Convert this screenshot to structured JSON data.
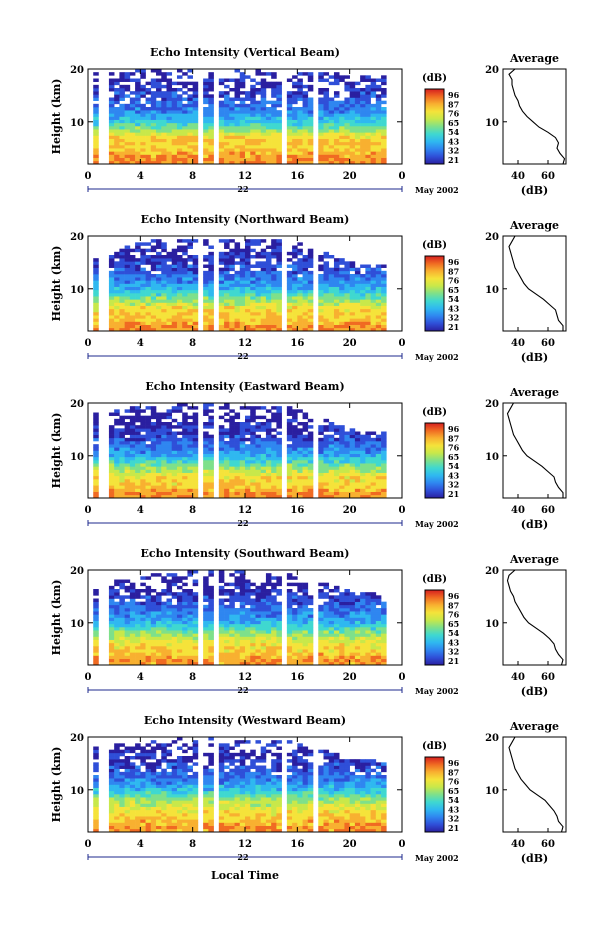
{
  "figure": {
    "xlabel": "Local Time",
    "colors": {
      "ink": "#000000",
      "gap": "#ffffff",
      "colormap": [
        "#2a1fa0",
        "#2f4fd8",
        "#2f86f0",
        "#2fb8f0",
        "#3fd8d0",
        "#7ee08a",
        "#c8e84a",
        "#f5e33a",
        "#f8b030",
        "#f06a22",
        "#d61f1f"
      ]
    }
  },
  "chart_data": [
    {
      "type": "heatmap",
      "title": "Echo Intensity (Vertical Beam)",
      "ylabel": "Height (km)",
      "x_ticks": [
        "0",
        "4",
        "8",
        "12",
        "16",
        "20",
        "0"
      ],
      "y_ticks": [
        "20",
        "10"
      ],
      "xlim": [
        0,
        24
      ],
      "ylim": [
        2,
        20
      ],
      "day_label": "22",
      "date_label": "May 2002",
      "colorbar": {
        "label": "(dB)",
        "ticks": [
          "96",
          "87",
          "76",
          "65",
          "54",
          "43",
          "32",
          "21"
        ],
        "range": [
          21,
          96
        ]
      },
      "data_gaps_hours": [
        [
          0.0,
          0.5
        ],
        [
          1.0,
          1.6
        ],
        [
          8.4,
          8.7
        ],
        [
          9.6,
          9.9
        ],
        [
          15.0,
          15.2
        ],
        [
          17.2,
          17.5
        ],
        [
          22.7,
          24.0
        ]
      ],
      "top_height_by_hour": {
        "hour": [
          0,
          4,
          8,
          12,
          16,
          20,
          24
        ],
        "km": [
          19.5,
          19.8,
          19.8,
          19.8,
          19.5,
          19.0,
          19.0
        ]
      },
      "average_profile": {
        "title": "Average",
        "xlabel": "(dB)",
        "x_ticks": [
          "40",
          "60"
        ],
        "y_ticks": [
          "20",
          "10"
        ],
        "xlim": [
          30,
          72
        ],
        "ylim": [
          2,
          20
        ],
        "height_km": [
          2,
          3,
          4,
          5,
          6,
          7,
          8,
          9,
          10,
          11,
          12,
          13,
          14,
          15,
          16,
          17,
          18,
          19,
          20
        ],
        "value_db": [
          70,
          71,
          68,
          66,
          67,
          65,
          60,
          54,
          50,
          46,
          43,
          41,
          40,
          38,
          37,
          36,
          36,
          34,
          38
        ]
      }
    },
    {
      "type": "heatmap",
      "title": "Echo Intensity (Northward Beam)",
      "ylabel": "Height (km)",
      "x_ticks": [
        "0",
        "4",
        "8",
        "12",
        "16",
        "20",
        "0"
      ],
      "y_ticks": [
        "20",
        "10"
      ],
      "xlim": [
        0,
        24
      ],
      "ylim": [
        2,
        20
      ],
      "day_label": "22",
      "date_label": "May 2002",
      "colorbar": {
        "label": "(dB)",
        "ticks": [
          "96",
          "87",
          "76",
          "65",
          "54",
          "43",
          "32",
          "21"
        ],
        "range": [
          21,
          96
        ]
      },
      "data_gaps_hours": [
        [
          0.0,
          0.5
        ],
        [
          1.0,
          1.6
        ],
        [
          8.4,
          8.7
        ],
        [
          9.6,
          9.9
        ],
        [
          15.0,
          15.2
        ],
        [
          17.2,
          17.5
        ],
        [
          22.7,
          24.0
        ]
      ],
      "top_height_by_hour": {
        "hour": [
          0,
          4,
          8,
          12,
          16,
          20,
          24
        ],
        "km": [
          15,
          19,
          19.5,
          19.5,
          19,
          15,
          14
        ]
      },
      "average_profile": {
        "title": "Average",
        "xlabel": "(dB)",
        "x_ticks": [
          "40",
          "60"
        ],
        "y_ticks": [
          "20",
          "10"
        ],
        "xlim": [
          30,
          72
        ],
        "ylim": [
          2,
          20
        ],
        "height_km": [
          2,
          3,
          4,
          5,
          6,
          7,
          8,
          9,
          10,
          11,
          12,
          13,
          14,
          15,
          16,
          17,
          18,
          19,
          20
        ],
        "value_db": [
          70,
          70,
          67,
          66,
          65,
          61,
          57,
          52,
          47,
          44,
          42,
          40,
          38,
          37,
          36,
          35,
          34,
          36,
          38
        ]
      }
    },
    {
      "type": "heatmap",
      "title": "Echo Intensity (Eastward Beam)",
      "ylabel": "Height (km)",
      "x_ticks": [
        "0",
        "4",
        "8",
        "12",
        "16",
        "20",
        "0"
      ],
      "y_ticks": [
        "20",
        "10"
      ],
      "xlim": [
        0,
        24
      ],
      "ylim": [
        2,
        20
      ],
      "day_label": "22",
      "date_label": "May 2002",
      "colorbar": {
        "label": "(dB)",
        "ticks": [
          "96",
          "87",
          "76",
          "65",
          "54",
          "43",
          "32",
          "21"
        ],
        "range": [
          21,
          96
        ]
      },
      "data_gaps_hours": [
        [
          0.0,
          0.5
        ],
        [
          1.0,
          1.6
        ],
        [
          8.4,
          8.7
        ],
        [
          9.6,
          9.9
        ],
        [
          15.0,
          15.2
        ],
        [
          17.2,
          17.5
        ],
        [
          22.7,
          24.0
        ]
      ],
      "top_height_by_hour": {
        "hour": [
          0,
          4,
          8,
          12,
          16,
          20,
          24
        ],
        "km": [
          18,
          19.5,
          19.8,
          19.8,
          19,
          15,
          14
        ]
      },
      "average_profile": {
        "title": "Average",
        "xlabel": "(dB)",
        "x_ticks": [
          "40",
          "60"
        ],
        "y_ticks": [
          "20",
          "10"
        ],
        "xlim": [
          30,
          72
        ],
        "ylim": [
          2,
          20
        ],
        "height_km": [
          2,
          3,
          4,
          5,
          6,
          7,
          8,
          9,
          10,
          11,
          12,
          13,
          14,
          15,
          16,
          17,
          18,
          19,
          20
        ],
        "value_db": [
          70,
          70,
          67,
          65,
          64,
          60,
          56,
          51,
          46,
          43,
          41,
          39,
          37,
          36,
          35,
          34,
          33,
          35,
          37
        ]
      }
    },
    {
      "type": "heatmap",
      "title": "Echo Intensity (Southward Beam)",
      "ylabel": "Height (km)",
      "x_ticks": [
        "0",
        "4",
        "8",
        "12",
        "16",
        "20",
        "0"
      ],
      "y_ticks": [
        "20",
        "10"
      ],
      "xlim": [
        0,
        24
      ],
      "ylim": [
        2,
        20
      ],
      "day_label": "22",
      "date_label": "May 2002",
      "colorbar": {
        "label": "(dB)",
        "ticks": [
          "96",
          "87",
          "76",
          "65",
          "54",
          "43",
          "32",
          "21"
        ],
        "range": [
          21,
          96
        ]
      },
      "data_gaps_hours": [
        [
          0.0,
          0.5
        ],
        [
          1.0,
          1.6
        ],
        [
          8.4,
          8.7
        ],
        [
          9.6,
          9.9
        ],
        [
          15.0,
          15.2
        ],
        [
          17.2,
          17.5
        ],
        [
          22.7,
          24.0
        ]
      ],
      "top_height_by_hour": {
        "hour": [
          0,
          4,
          8,
          12,
          16,
          20,
          24
        ],
        "km": [
          16,
          19.5,
          19.8,
          19.8,
          19,
          16,
          15
        ]
      },
      "average_profile": {
        "title": "Average",
        "xlabel": "(dB)",
        "x_ticks": [
          "40",
          "60"
        ],
        "y_ticks": [
          "20",
          "10"
        ],
        "xlim": [
          30,
          72
        ],
        "ylim": [
          2,
          20
        ],
        "height_km": [
          2,
          3,
          4,
          5,
          6,
          7,
          8,
          9,
          10,
          11,
          12,
          13,
          14,
          15,
          16,
          17,
          18,
          19,
          20
        ],
        "value_db": [
          69,
          70,
          67,
          65,
          64,
          61,
          57,
          52,
          47,
          44,
          42,
          40,
          38,
          37,
          35,
          34,
          33,
          34,
          38
        ]
      }
    },
    {
      "type": "heatmap",
      "title": "Echo Intensity (Westward Beam)",
      "ylabel": "Height (km)",
      "x_ticks": [
        "0",
        "4",
        "8",
        "12",
        "16",
        "20",
        "0"
      ],
      "y_ticks": [
        "20",
        "10"
      ],
      "xlim": [
        0,
        24
      ],
      "ylim": [
        2,
        20
      ],
      "day_label": "22",
      "date_label": "May 2002",
      "colorbar": {
        "label": "(dB)",
        "ticks": [
          "96",
          "87",
          "76",
          "65",
          "54",
          "43",
          "32",
          "21"
        ],
        "range": [
          21,
          96
        ]
      },
      "data_gaps_hours": [
        [
          0.0,
          0.5
        ],
        [
          1.0,
          1.6
        ],
        [
          8.4,
          8.7
        ],
        [
          9.6,
          9.9
        ],
        [
          15.0,
          15.2
        ],
        [
          17.2,
          17.5
        ],
        [
          22.7,
          24.0
        ]
      ],
      "top_height_by_hour": {
        "hour": [
          0,
          4,
          8,
          12,
          16,
          20,
          24
        ],
        "km": [
          18,
          19.5,
          19.8,
          19.8,
          19,
          16,
          15
        ]
      },
      "average_profile": {
        "title": "Average",
        "xlabel": "(dB)",
        "x_ticks": [
          "40",
          "60"
        ],
        "y_ticks": [
          "20",
          "10"
        ],
        "xlim": [
          30,
          72
        ],
        "ylim": [
          2,
          20
        ],
        "height_km": [
          2,
          3,
          4,
          5,
          6,
          7,
          8,
          9,
          10,
          11,
          12,
          13,
          14,
          15,
          16,
          17,
          18,
          19,
          20
        ],
        "value_db": [
          69,
          70,
          67,
          66,
          64,
          61,
          58,
          53,
          48,
          45,
          42,
          40,
          38,
          37,
          36,
          35,
          34,
          36,
          38
        ]
      }
    }
  ]
}
